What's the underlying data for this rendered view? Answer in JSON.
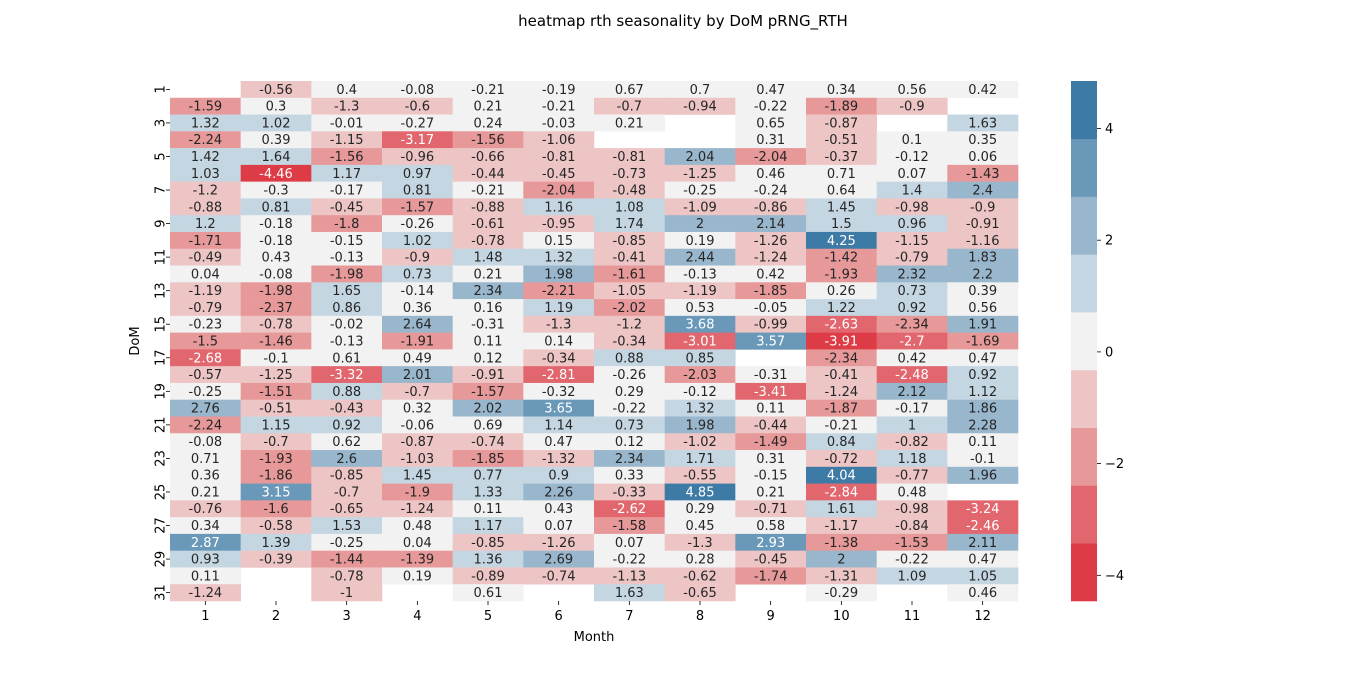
{
  "chart_data": {
    "type": "heatmap",
    "title": "heatmap rth seasonality by DoM pRNG_RTH",
    "xlabel": "Month",
    "ylabel": "DoM",
    "x": [
      "1",
      "2",
      "3",
      "4",
      "5",
      "6",
      "7",
      "8",
      "9",
      "10",
      "11",
      "12"
    ],
    "y": [
      "1",
      "2",
      "3",
      "4",
      "5",
      "6",
      "7",
      "8",
      "9",
      "10",
      "11",
      "12",
      "13",
      "14",
      "15",
      "16",
      "17",
      "18",
      "19",
      "20",
      "21",
      "22",
      "23",
      "24",
      "25",
      "26",
      "27",
      "28",
      "29",
      "30",
      "31"
    ],
    "y_tick_labels": [
      "1",
      "3",
      "5",
      "7",
      "9",
      "11",
      "13",
      "15",
      "17",
      "19",
      "21",
      "23",
      "25",
      "27",
      "29",
      "31"
    ],
    "values": [
      [
        null,
        -0.56,
        0.4,
        -0.08,
        -0.21,
        -0.19,
        0.67,
        0.7,
        0.47,
        0.34,
        0.56,
        0.42
      ],
      [
        -1.59,
        0.3,
        -1.3,
        -0.6,
        0.21,
        -0.21,
        -0.7,
        -0.94,
        -0.22,
        -1.89,
        -0.9,
        null
      ],
      [
        1.32,
        1.02,
        -0.01,
        -0.27,
        0.24,
        -0.03,
        0.21,
        null,
        0.65,
        -0.87,
        null,
        1.63
      ],
      [
        -2.24,
        0.39,
        -1.15,
        -3.17,
        -1.56,
        -1.06,
        null,
        null,
        0.31,
        -0.51,
        0.1,
        0.35
      ],
      [
        1.42,
        1.64,
        -1.56,
        -0.96,
        -0.66,
        -0.81,
        -0.81,
        2.04,
        -2.04,
        -0.37,
        -0.12,
        0.06
      ],
      [
        1.03,
        -4.46,
        1.17,
        0.97,
        -0.44,
        -0.45,
        -0.73,
        -1.25,
        0.46,
        0.71,
        0.07,
        -1.43
      ],
      [
        -1.2,
        -0.3,
        -0.17,
        0.81,
        -0.21,
        -2.04,
        -0.48,
        -0.25,
        -0.24,
        0.64,
        1.4,
        2.4
      ],
      [
        -0.88,
        0.81,
        -0.45,
        -1.57,
        -0.88,
        1.16,
        1.08,
        -1.09,
        -0.86,
        1.45,
        -0.98,
        -0.9
      ],
      [
        1.2,
        -0.18,
        -1.8,
        -0.26,
        -0.61,
        -0.95,
        1.74,
        2,
        2.14,
        1.5,
        0.96,
        -0.91
      ],
      [
        -1.71,
        -0.18,
        -0.15,
        1.02,
        -0.78,
        0.15,
        -0.85,
        0.19,
        -1.26,
        4.25,
        -1.15,
        -1.16
      ],
      [
        -0.49,
        0.43,
        -0.13,
        -0.9,
        1.48,
        1.32,
        -0.41,
        2.44,
        -1.24,
        -1.42,
        -0.79,
        1.83
      ],
      [
        0.04,
        -0.08,
        -1.98,
        0.73,
        0.21,
        1.98,
        -1.61,
        -0.13,
        0.42,
        -1.93,
        2.32,
        2.2
      ],
      [
        -1.19,
        -1.98,
        1.65,
        -0.14,
        2.34,
        -2.21,
        -1.05,
        -1.19,
        -1.85,
        0.26,
        0.73,
        0.39
      ],
      [
        -0.79,
        -2.37,
        0.86,
        0.36,
        0.16,
        1.19,
        -2.02,
        0.53,
        -0.05,
        1.22,
        0.92,
        0.56
      ],
      [
        -0.23,
        -0.78,
        -0.02,
        2.64,
        -0.31,
        -1.3,
        -1.2,
        3.68,
        -0.99,
        -2.63,
        -2.34,
        1.91
      ],
      [
        -1.5,
        -1.46,
        -0.13,
        -1.91,
        0.11,
        0.14,
        -0.34,
        -3.01,
        3.57,
        -3.91,
        -2.7,
        -1.69
      ],
      [
        -2.68,
        -0.1,
        0.61,
        0.49,
        0.12,
        -0.34,
        0.88,
        0.85,
        null,
        -2.34,
        0.42,
        0.47
      ],
      [
        -0.57,
        -1.25,
        -3.32,
        2.01,
        -0.91,
        -2.81,
        -0.26,
        -2.03,
        -0.31,
        -0.41,
        -2.48,
        0.92
      ],
      [
        -0.25,
        -1.51,
        0.88,
        -0.7,
        -1.57,
        -0.32,
        0.29,
        -0.12,
        -3.41,
        -1.24,
        2.12,
        1.12
      ],
      [
        2.76,
        -0.51,
        -0.43,
        0.32,
        2.02,
        3.65,
        -0.22,
        1.32,
        0.11,
        -1.87,
        -0.17,
        1.86
      ],
      [
        -2.24,
        1.15,
        0.92,
        -0.06,
        0.69,
        1.14,
        0.73,
        1.98,
        -0.44,
        -0.21,
        1,
        2.28
      ],
      [
        -0.08,
        -0.7,
        0.62,
        -0.87,
        -0.74,
        0.47,
        0.12,
        -1.02,
        -1.49,
        0.84,
        -0.82,
        0.11
      ],
      [
        0.71,
        -1.93,
        2.6,
        -1.03,
        -1.85,
        -1.32,
        2.34,
        1.71,
        0.31,
        -0.72,
        1.18,
        -0.1
      ],
      [
        0.36,
        -1.86,
        -0.85,
        1.45,
        0.77,
        0.9,
        0.33,
        -0.55,
        -0.15,
        4.04,
        -0.77,
        1.96
      ],
      [
        0.21,
        3.15,
        -0.7,
        -1.9,
        1.33,
        2.26,
        -0.33,
        4.85,
        0.21,
        -2.84,
        0.48,
        null
      ],
      [
        -0.76,
        -1.6,
        -0.65,
        -1.24,
        0.11,
        0.43,
        -2.62,
        0.29,
        -0.71,
        1.61,
        -0.98,
        -3.24
      ],
      [
        0.34,
        -0.58,
        1.53,
        0.48,
        1.17,
        0.07,
        -1.58,
        0.45,
        0.58,
        -1.17,
        -0.84,
        -2.46
      ],
      [
        2.87,
        1.39,
        -0.25,
        0.04,
        -0.85,
        -1.26,
        0.07,
        -1.3,
        2.93,
        -1.38,
        -1.53,
        2.11
      ],
      [
        0.93,
        -0.39,
        -1.44,
        -1.39,
        1.36,
        2.69,
        -0.22,
        0.28,
        -0.45,
        2,
        -0.22,
        0.47
      ],
      [
        0.11,
        null,
        -0.78,
        0.19,
        -0.89,
        -0.74,
        -1.13,
        -0.62,
        -1.74,
        -1.31,
        1.09,
        1.05
      ],
      [
        -1.24,
        null,
        -1,
        null,
        0.61,
        null,
        1.63,
        -0.65,
        null,
        -0.29,
        null,
        0.46
      ]
    ],
    "colorbar": {
      "vmin": -4.46,
      "vmax": 4.85,
      "ticks": [
        "−4",
        "−2",
        "0",
        "2",
        "4"
      ],
      "tick_values": [
        -4,
        -2,
        0,
        2,
        4
      ],
      "palette": [
        "#dd3b46",
        "#e1666e",
        "#e79899",
        "#edc5c5",
        "#f2f2f2",
        "#c5d6e3",
        "#98b6cc",
        "#6a98b8",
        "#3e7aa6"
      ]
    },
    "grid": false,
    "legend": "colorbar right"
  }
}
